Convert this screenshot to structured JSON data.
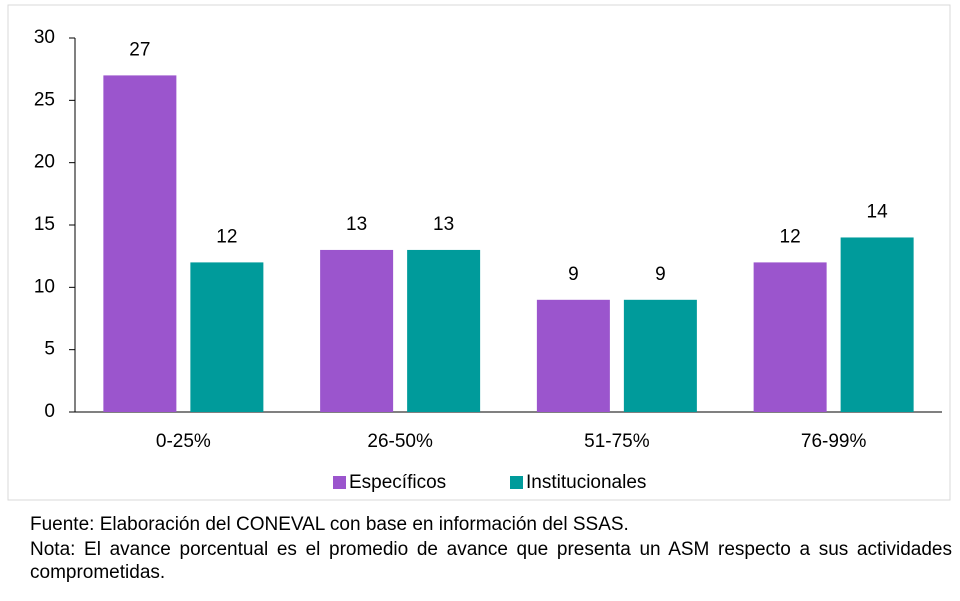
{
  "chart_data": {
    "type": "bar",
    "categories": [
      "0-25%",
      "26-50%",
      "51-75%",
      "76-99%"
    ],
    "series": [
      {
        "name": "Específicos",
        "color": "#9b55cd",
        "values": [
          27,
          13,
          9,
          12
        ]
      },
      {
        "name": "Institucionales",
        "color": "#009b9b",
        "values": [
          12,
          13,
          9,
          14
        ]
      }
    ],
    "ylim": [
      0,
      30
    ],
    "yticks": [
      0,
      5,
      10,
      15,
      20,
      25,
      30
    ],
    "legend": "bottom",
    "source": "Fuente: Elaboración del CONEVAL con base en información del SSAS.",
    "note": "Nota: El avance porcentual es el promedio de avance que presenta un ASM respecto a sus actividades comprometidas."
  }
}
